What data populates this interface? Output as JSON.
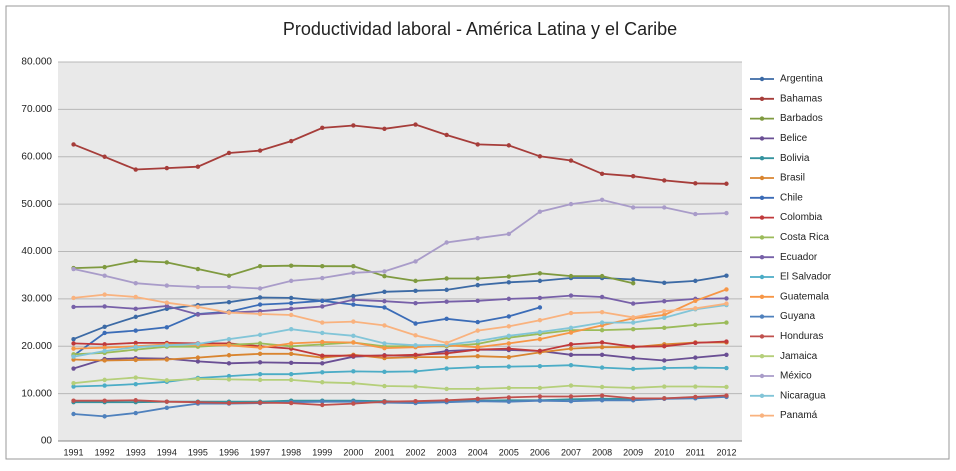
{
  "chart_data": {
    "type": "line",
    "title": "Productividad laboral - América Latina y el Caribe",
    "categories": [
      "1991",
      "1992",
      "1993",
      "1994",
      "1995",
      "1996",
      "1997",
      "1998",
      "1999",
      "2000",
      "2001",
      "2002",
      "2003",
      "2004",
      "2005",
      "2006",
      "2007",
      "2008",
      "2009",
      "2010",
      "2011",
      "2012"
    ],
    "ylim": [
      0,
      80000
    ],
    "yticks": [
      {
        "value": 0,
        "label": "00"
      },
      {
        "value": 10000,
        "label": "10.000"
      },
      {
        "value": 20000,
        "label": "20.000"
      },
      {
        "value": 30000,
        "label": "30.000"
      },
      {
        "value": 40000,
        "label": "40.000"
      },
      {
        "value": 50000,
        "label": "50.000"
      },
      {
        "value": 60000,
        "label": "60.000"
      },
      {
        "value": 70000,
        "label": "70.000"
      },
      {
        "value": 80000,
        "label": "80.000"
      }
    ],
    "grid": true,
    "legend": "right",
    "series": [
      {
        "name": "Argentina",
        "color": "#3c6aa5",
        "values": [
          21500,
          24100,
          26200,
          27900,
          28700,
          29300,
          30300,
          30200,
          29600,
          30600,
          31500,
          31700,
          31900,
          32900,
          33500,
          33800,
          34400,
          34400,
          34100,
          33400,
          33800,
          34900
        ]
      },
      {
        "name": "Bahamas",
        "color": "#a63d3a",
        "values": [
          62600,
          60000,
          57300,
          57600,
          57900,
          60800,
          61300,
          63300,
          66100,
          66600,
          65900,
          66800,
          64600,
          62600,
          62400,
          60100,
          59200,
          56400,
          55900,
          55000,
          54400,
          54300
        ]
      },
      {
        "name": "Barbados",
        "color": "#7f9a3f",
        "values": [
          36500,
          36700,
          38000,
          37700,
          36300,
          34900,
          36900,
          37000,
          36900,
          36900,
          34800,
          33800,
          34300,
          34300,
          34700,
          35400,
          34800,
          34800,
          33300,
          null,
          null,
          null
        ]
      },
      {
        "name": "Belice",
        "color": "#6a4f94",
        "values": [
          15300,
          17300,
          17500,
          17400,
          16800,
          16400,
          16600,
          16500,
          16400,
          17800,
          18100,
          18000,
          19000,
          19300,
          19200,
          19000,
          18200,
          18200,
          17500,
          17000,
          17600,
          18200
        ]
      },
      {
        "name": "Bolivia",
        "color": "#35939f",
        "values": [
          8200,
          8200,
          8200,
          8300,
          8300,
          8300,
          8300,
          8500,
          8500,
          8500,
          8400,
          8200,
          8400,
          8500,
          8600,
          8600,
          8800,
          8900,
          8900,
          9000,
          9200,
          9400
        ]
      },
      {
        "name": "Brasil",
        "color": "#d98530",
        "values": [
          17200,
          17000,
          17100,
          17200,
          17600,
          18100,
          18400,
          18400,
          17600,
          18200,
          17500,
          17700,
          17700,
          17900,
          17700,
          18700,
          19500,
          19800,
          19800,
          20400,
          20800,
          20800
        ]
      },
      {
        "name": "Chile",
        "color": "#3b6cb7",
        "values": [
          18000,
          22800,
          23300,
          24000,
          26800,
          27300,
          28800,
          29100,
          29600,
          28800,
          28200,
          24800,
          25800,
          25100,
          26300,
          28200,
          null,
          null,
          null,
          null,
          null,
          null
        ]
      },
      {
        "name": "Colombia",
        "color": "#c0393b",
        "values": [
          20600,
          20400,
          20700,
          20700,
          20600,
          20600,
          20000,
          19500,
          18000,
          18000,
          18000,
          18200,
          18500,
          19300,
          19500,
          19000,
          20400,
          20800,
          19900,
          20000,
          20700,
          21000
        ]
      },
      {
        "name": "Costa Rica",
        "color": "#9bbb59",
        "values": [
          18300,
          18600,
          19300,
          19900,
          19900,
          20300,
          20600,
          20000,
          20400,
          20800,
          20000,
          20000,
          20000,
          20500,
          21800,
          22600,
          23400,
          23400,
          23600,
          23900,
          24500,
          25000
        ]
      },
      {
        "name": "Ecuador",
        "color": "#7760a8",
        "values": [
          28300,
          28400,
          27900,
          28500,
          26700,
          27100,
          27400,
          27900,
          28400,
          29800,
          29500,
          29100,
          29400,
          29600,
          30000,
          30200,
          30700,
          30400,
          29000,
          29500,
          30000,
          30100
        ]
      },
      {
        "name": "El Salvador",
        "color": "#4bacc6",
        "values": [
          11500,
          11700,
          12000,
          12500,
          13300,
          13700,
          14100,
          14100,
          14500,
          14700,
          14600,
          14700,
          15300,
          15600,
          15700,
          15800,
          16000,
          15500,
          15200,
          15400,
          15500,
          15400
        ]
      },
      {
        "name": "Guatemala",
        "color": "#f79646",
        "values": [
          19500,
          19700,
          20000,
          20400,
          20300,
          20200,
          19700,
          20600,
          20900,
          20800,
          19600,
          19800,
          20200,
          19800,
          20600,
          21500,
          22900,
          24400,
          25900,
          26600,
          29600,
          32000
        ]
      },
      {
        "name": "Guyana",
        "color": "#4f81bd",
        "values": [
          5700,
          5200,
          5900,
          7000,
          7900,
          7900,
          8000,
          8200,
          8300,
          8300,
          8100,
          8000,
          8200,
          8400,
          8300,
          8500,
          8400,
          8600,
          8600,
          8900,
          9000,
          9300
        ]
      },
      {
        "name": "Honduras",
        "color": "#c0504d",
        "values": [
          8500,
          8500,
          8600,
          8300,
          8200,
          8000,
          8100,
          8000,
          7600,
          7900,
          8300,
          8400,
          8600,
          8900,
          9200,
          9400,
          9400,
          9600,
          9000,
          9000,
          9300,
          9600
        ]
      },
      {
        "name": "Jamaica",
        "color": "#b5cf7a",
        "values": [
          12200,
          12900,
          13400,
          12800,
          13100,
          13000,
          12900,
          12900,
          12400,
          12200,
          11600,
          11500,
          11000,
          11000,
          11200,
          11200,
          11700,
          11400,
          11200,
          11500,
          11500,
          11400
        ]
      },
      {
        "name": "México",
        "color": "#a99cc9",
        "values": [
          36300,
          34900,
          33300,
          32800,
          32500,
          32500,
          32200,
          33800,
          34400,
          35500,
          35800,
          37900,
          41900,
          42800,
          43700,
          48400,
          50000,
          50900,
          49300,
          49300,
          47900,
          48100
        ]
      },
      {
        "name": "Nicaragua",
        "color": "#82c5d8",
        "values": [
          17800,
          19000,
          19800,
          20200,
          20500,
          21500,
          22400,
          23600,
          22800,
          22200,
          20600,
          20200,
          20300,
          21100,
          22200,
          23000,
          23900,
          25000,
          25000,
          26000,
          27800,
          28700
        ]
      },
      {
        "name": "Panamá",
        "color": "#f9b27e",
        "values": [
          30200,
          30900,
          30400,
          29200,
          28300,
          27100,
          26800,
          26600,
          25000,
          25200,
          24400,
          22300,
          20700,
          23300,
          24200,
          25500,
          27000,
          27200,
          26100,
          27400,
          28000,
          29000
        ]
      }
    ]
  }
}
